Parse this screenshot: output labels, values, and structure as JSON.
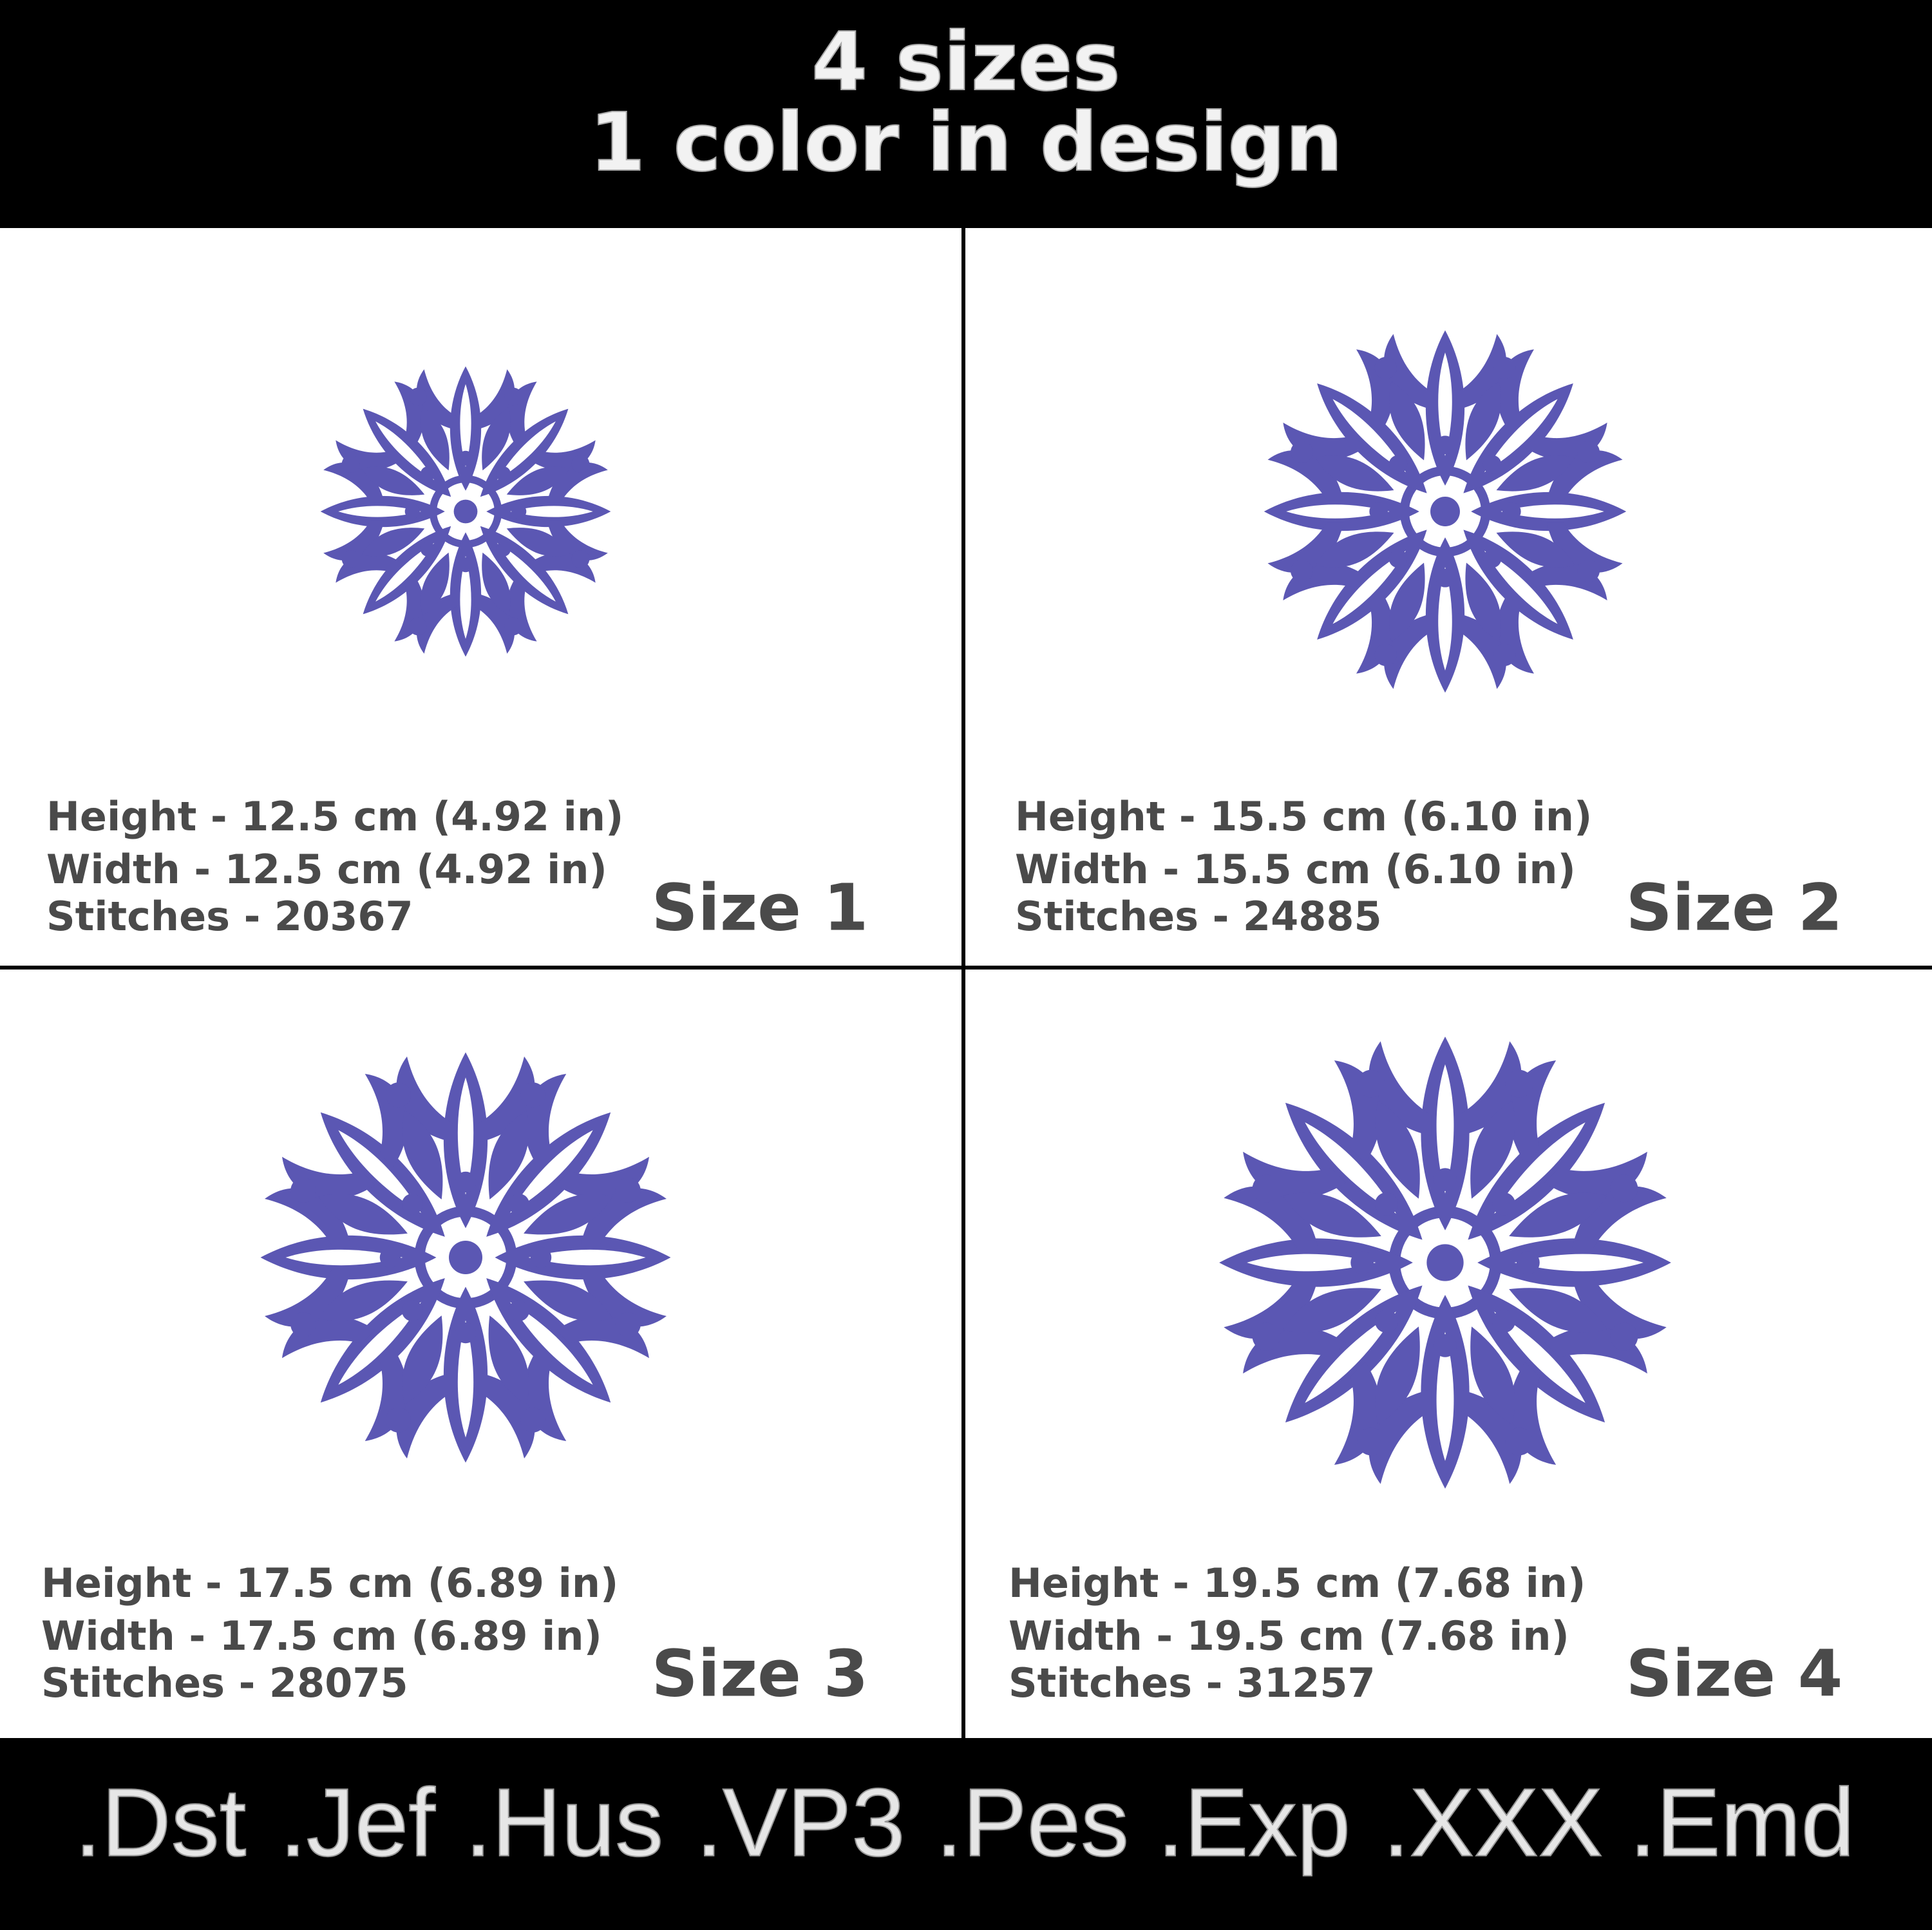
{
  "header": {
    "line1": "4 sizes",
    "line2": "1 color in design"
  },
  "panels": [
    {
      "height": "Height - 12.5 cm (4.92 in)",
      "width": "Width - 12.5 cm (4.92 in)",
      "stitches": "Stitches - 20367",
      "size": "Size 1"
    },
    {
      "height": "Height - 15.5 cm (6.10 in)",
      "width": "Width - 15.5 cm (6.10 in)",
      "stitches": "Stitches - 24885",
      "size": "Size 2"
    },
    {
      "height": "Height - 17.5 cm (6.89 in)",
      "width": "Width - 17.5 cm (6.89 in)",
      "stitches": "Stitches - 28075",
      "size": "Size 3"
    },
    {
      "height": "Height - 19.5 cm (7.68 in)",
      "width": "Width - 19.5 cm (7.68 in)",
      "stitches": "Stitches - 31257",
      "size": "Size 4"
    }
  ],
  "formats": [
    ".Dst",
    ".Jef",
    ".Hus",
    ".VP3",
    ".Pes",
    ".Exp",
    ".XXX",
    ".Emd"
  ]
}
